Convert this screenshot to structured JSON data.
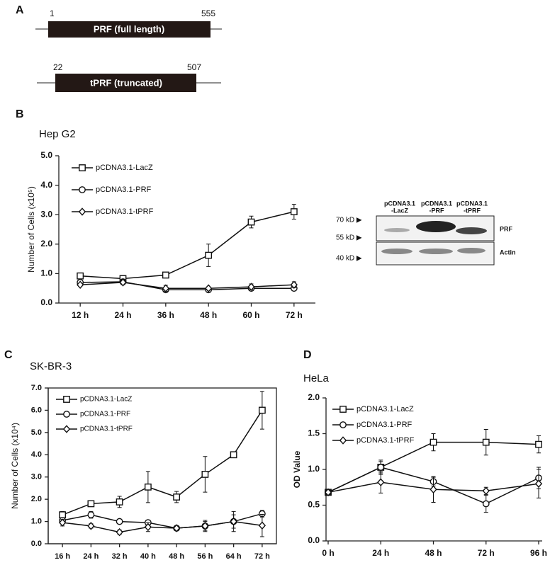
{
  "panels": {
    "a": "A",
    "b": "B",
    "c": "C",
    "d": "D"
  },
  "constructs": [
    {
      "start": "1",
      "end": "555",
      "label": "PRF (full length)"
    },
    {
      "start": "22",
      "end": "507",
      "label": "tPRF (truncated)"
    }
  ],
  "blot": {
    "lanes": [
      [
        "pCDNA3.1",
        "-LacZ"
      ],
      [
        "pCDNA3.1",
        "-PRF"
      ],
      [
        "pCDNA3.1",
        "-tPRF"
      ]
    ],
    "markers": [
      "70 kD ▶",
      "55 kD ▶",
      "40 kD ▶"
    ],
    "bands": [
      "PRF",
      "Actin"
    ]
  },
  "chart_data": [
    {
      "type": "line",
      "title": "Hep G2",
      "y_label": "Number of Cells (x10⁵)",
      "categories": [
        "12 h",
        "24 h",
        "36 h",
        "48 h",
        "60 h",
        "72 h"
      ],
      "ylim": [
        0,
        5
      ],
      "yticks": [
        {
          "value": 0,
          "label": "0.0"
        },
        {
          "value": 1,
          "label": "1.0"
        },
        {
          "value": 2,
          "label": "2.0"
        },
        {
          "value": 3,
          "label": "3.0"
        },
        {
          "value": 4,
          "label": "4.0"
        },
        {
          "value": 5,
          "label": "5.0"
        }
      ],
      "series": [
        {
          "name": "pCDNA3.1-LacZ",
          "color": "#111111",
          "marker": "square",
          "values": [
            0.92,
            0.83,
            0.95,
            1.62,
            2.75,
            3.1
          ],
          "errors": [
            0.08,
            0.05,
            0.05,
            0.38,
            0.2,
            0.25
          ]
        },
        {
          "name": "pCDNA3.1-PRF",
          "color": "#111111",
          "marker": "circle",
          "values": [
            0.7,
            0.72,
            0.45,
            0.45,
            0.5,
            0.5
          ],
          "errors": [
            0.05,
            0.05,
            0.05,
            0.05,
            0.08,
            0.08
          ]
        },
        {
          "name": "pCDNA3.1-tPRF",
          "color": "#111111",
          "marker": "diamond",
          "values": [
            0.62,
            0.7,
            0.5,
            0.5,
            0.55,
            0.62
          ],
          "errors": [
            0.05,
            0.08,
            0.1,
            0.05,
            0.1,
            0.1
          ]
        }
      ]
    },
    {
      "type": "line",
      "title": "SK-BR-3",
      "y_label": "Number of Cells (x10⁴)",
      "categories": [
        "16 h",
        "24 h",
        "32 h",
        "40 h",
        "48 h",
        "56 h",
        "64 h",
        "72 h"
      ],
      "ylim": [
        0,
        7
      ],
      "yticks": [
        {
          "value": 0,
          "label": "0.0"
        },
        {
          "value": 1,
          "label": "1.0"
        },
        {
          "value": 2,
          "label": "2.0"
        },
        {
          "value": 3,
          "label": "3.0"
        },
        {
          "value": 4,
          "label": "4.0"
        },
        {
          "value": 5,
          "label": "5.0"
        },
        {
          "value": 6,
          "label": "6.0"
        },
        {
          "value": 7,
          "label": "7.0"
        }
      ],
      "series": [
        {
          "name": "pCDNA3.1-LacZ",
          "color": "#111111",
          "marker": "square",
          "values": [
            1.3,
            1.8,
            1.88,
            2.55,
            2.1,
            3.12,
            4.0,
            6.0
          ],
          "errors": [
            0.15,
            0.1,
            0.25,
            0.7,
            0.25,
            0.8,
            0.05,
            0.85
          ]
        },
        {
          "name": "pCDNA3.1-PRF",
          "color": "#111111",
          "marker": "circle",
          "values": [
            1.05,
            1.3,
            1.0,
            0.95,
            0.7,
            0.8,
            1.0,
            1.35
          ],
          "errors": [
            0.1,
            0.15,
            0.1,
            0.05,
            0.05,
            0.2,
            0.45,
            0.15
          ]
        },
        {
          "name": "pCDNA3.1-tPRF",
          "color": "#111111",
          "marker": "diamond",
          "values": [
            0.95,
            0.8,
            0.52,
            0.75,
            0.7,
            0.8,
            1.0,
            0.82
          ],
          "errors": [
            0.15,
            0.1,
            0.1,
            0.2,
            0.05,
            0.25,
            0.3,
            0.5
          ]
        }
      ]
    },
    {
      "type": "line",
      "title": "HeLa",
      "y_label": "OD Value",
      "categories": [
        "0 h",
        "24 h",
        "48 h",
        "72 h",
        "96 h"
      ],
      "ylim": [
        0,
        2
      ],
      "yticks": [
        {
          "value": 0,
          "label": "0.0"
        },
        {
          "value": 0.5,
          "label": "0.5"
        },
        {
          "value": 1,
          "label": "1.0"
        },
        {
          "value": 1.5,
          "label": "1.5"
        },
        {
          "value": 2,
          "label": "2.0"
        }
      ],
      "series": [
        {
          "name": "pCDNA3.1-LacZ",
          "color": "#111111",
          "marker": "square",
          "values": [
            0.68,
            1.03,
            1.38,
            1.38,
            1.35
          ],
          "errors": [
            0.03,
            0.08,
            0.12,
            0.18,
            0.12
          ]
        },
        {
          "name": "pCDNA3.1-PRF",
          "color": "#111111",
          "marker": "circle",
          "values": [
            0.68,
            1.03,
            0.83,
            0.52,
            0.88
          ],
          "errors": [
            0.03,
            0.1,
            0.06,
            0.12,
            0.15
          ]
        },
        {
          "name": "pCDNA3.1-tPRF",
          "color": "#111111",
          "marker": "diamond",
          "values": [
            0.68,
            0.82,
            0.72,
            0.7,
            0.8
          ],
          "errors": [
            0.03,
            0.15,
            0.18,
            0.05,
            0.2
          ]
        }
      ]
    }
  ]
}
